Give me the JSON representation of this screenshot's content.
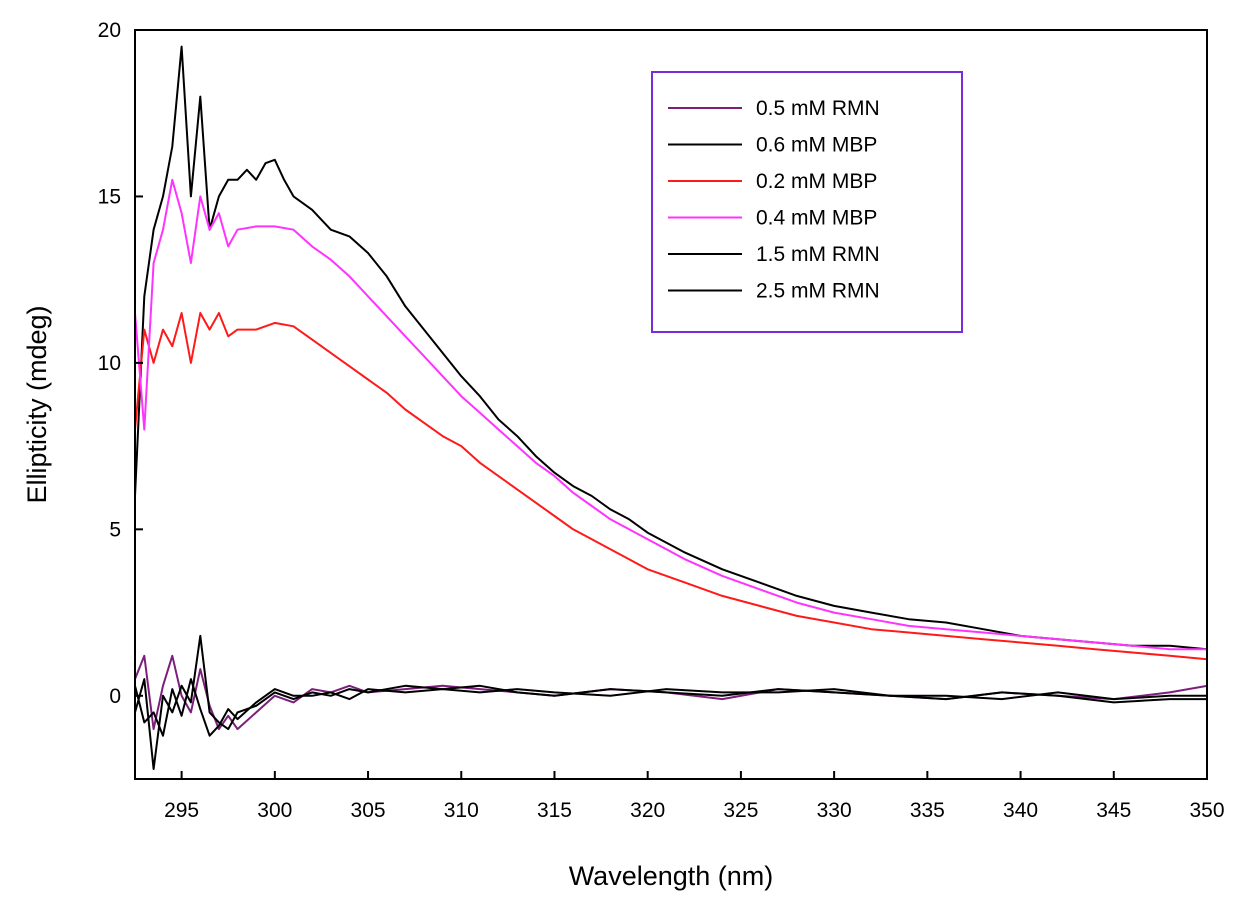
{
  "chart_data": {
    "type": "line",
    "title": "",
    "xlabel": "Wavelength (nm)",
    "ylabel": "Ellipticity (mdeg)",
    "xlim": [
      292.5,
      350
    ],
    "ylim": [
      -2.5,
      20
    ],
    "xticks": [
      295,
      300,
      305,
      310,
      315,
      320,
      325,
      330,
      335,
      340,
      345,
      350
    ],
    "yticks": [
      0,
      5,
      10,
      15,
      20
    ],
    "grid": false,
    "legend": "top-right",
    "series": [
      {
        "name": "0.5 mM RMN",
        "color": "#7b1f7b",
        "x": [
          292.5,
          293,
          293.5,
          294,
          294.5,
          295,
          295.5,
          296,
          296.5,
          297,
          297.5,
          298,
          299,
          300,
          301,
          302,
          303,
          304,
          305,
          307,
          309,
          311,
          313,
          315,
          318,
          321,
          324,
          327,
          330,
          333,
          336,
          339,
          342,
          345,
          348,
          350
        ],
        "y": [
          0.5,
          1.2,
          -1.0,
          0.3,
          1.2,
          0.0,
          -0.5,
          0.8,
          -0.3,
          -1.0,
          -0.6,
          -1.0,
          -0.5,
          0.0,
          -0.2,
          0.2,
          0.1,
          0.3,
          0.1,
          0.2,
          0.3,
          0.2,
          0.1,
          0.0,
          0.2,
          0.1,
          -0.1,
          0.2,
          0.1,
          0.0,
          -0.1,
          0.1,
          0.0,
          -0.1,
          0.1,
          0.3
        ]
      },
      {
        "name": "0.6 mM MBP",
        "color": "#000000",
        "x": [
          292.5,
          293,
          293.5,
          294,
          294.5,
          295,
          295.5,
          296,
          296.5,
          297,
          297.5,
          298,
          298.5,
          299,
          299.5,
          300,
          300.5,
          301,
          302,
          303,
          304,
          305,
          306,
          307,
          308,
          309,
          310,
          311,
          312,
          313,
          314,
          315,
          316,
          317,
          318,
          319,
          320,
          322,
          324,
          326,
          328,
          330,
          332,
          334,
          336,
          338,
          340,
          342,
          344,
          346,
          348,
          350
        ],
        "y": [
          6.0,
          12.0,
          14.0,
          15.0,
          16.5,
          19.5,
          15.0,
          18.0,
          14.0,
          15.0,
          15.5,
          15.5,
          15.8,
          15.5,
          16.0,
          16.1,
          15.5,
          15.0,
          14.6,
          14.0,
          13.8,
          13.3,
          12.6,
          11.7,
          11.0,
          10.3,
          9.6,
          9.0,
          8.3,
          7.8,
          7.2,
          6.7,
          6.3,
          6.0,
          5.6,
          5.3,
          4.9,
          4.3,
          3.8,
          3.4,
          3.0,
          2.7,
          2.5,
          2.3,
          2.2,
          2.0,
          1.8,
          1.7,
          1.6,
          1.5,
          1.5,
          1.4
        ]
      },
      {
        "name": "0.2 mM MBP",
        "color": "#ff1a1a",
        "x": [
          292.5,
          293,
          293.5,
          294,
          294.5,
          295,
          295.5,
          296,
          296.5,
          297,
          297.5,
          298,
          299,
          300,
          301,
          302,
          303,
          304,
          305,
          306,
          307,
          308,
          309,
          310,
          311,
          312,
          313,
          314,
          315,
          316,
          317,
          318,
          319,
          320,
          322,
          324,
          326,
          328,
          330,
          332,
          334,
          336,
          338,
          340,
          342,
          344,
          346,
          348,
          350
        ],
        "y": [
          8.0,
          11.0,
          10.0,
          11.0,
          10.5,
          11.5,
          10.0,
          11.5,
          11.0,
          11.5,
          10.8,
          11.0,
          11.0,
          11.2,
          11.1,
          10.7,
          10.3,
          9.9,
          9.5,
          9.1,
          8.6,
          8.2,
          7.8,
          7.5,
          7.0,
          6.6,
          6.2,
          5.8,
          5.4,
          5.0,
          4.7,
          4.4,
          4.1,
          3.8,
          3.4,
          3.0,
          2.7,
          2.4,
          2.2,
          2.0,
          1.9,
          1.8,
          1.7,
          1.6,
          1.5,
          1.4,
          1.3,
          1.2,
          1.1
        ]
      },
      {
        "name": "0.4 mM MBP",
        "color": "#ff33ff",
        "x": [
          292.5,
          293,
          293.5,
          294,
          294.5,
          295,
          295.5,
          296,
          296.5,
          297,
          297.5,
          298,
          299,
          300,
          301,
          302,
          303,
          304,
          305,
          306,
          307,
          308,
          309,
          310,
          311,
          312,
          313,
          314,
          315,
          316,
          317,
          318,
          319,
          320,
          322,
          324,
          326,
          328,
          330,
          332,
          334,
          336,
          338,
          340,
          342,
          344,
          346,
          348,
          350
        ],
        "y": [
          11.5,
          8.0,
          13.0,
          14.0,
          15.5,
          14.5,
          13.0,
          15.0,
          14.0,
          14.5,
          13.5,
          14.0,
          14.1,
          14.1,
          14.0,
          13.5,
          13.1,
          12.6,
          12.0,
          11.4,
          10.8,
          10.2,
          9.6,
          9.0,
          8.5,
          8.0,
          7.5,
          7.0,
          6.6,
          6.1,
          5.7,
          5.3,
          5.0,
          4.7,
          4.1,
          3.6,
          3.2,
          2.8,
          2.5,
          2.3,
          2.1,
          2.0,
          1.9,
          1.8,
          1.7,
          1.6,
          1.5,
          1.4,
          1.4
        ]
      },
      {
        "name": "1.5 mM RMN",
        "color": "#000000",
        "x": [
          292.5,
          293,
          293.5,
          294,
          294.5,
          295,
          295.5,
          296,
          296.5,
          297,
          297.5,
          298,
          299,
          300,
          301,
          302,
          303,
          304,
          305,
          307,
          309,
          311,
          313,
          315,
          318,
          321,
          324,
          327,
          330,
          333,
          336,
          339,
          342,
          345,
          348,
          350
        ],
        "y": [
          -0.5,
          0.5,
          -2.2,
          0.0,
          -0.5,
          0.3,
          -0.2,
          1.8,
          -0.5,
          -0.8,
          -1.0,
          -0.5,
          -0.3,
          0.1,
          -0.1,
          0.1,
          0.0,
          0.2,
          0.1,
          0.3,
          0.2,
          0.3,
          0.1,
          0.0,
          0.2,
          0.1,
          0.0,
          0.2,
          0.1,
          0.0,
          0.0,
          -0.1,
          0.1,
          -0.1,
          0.0,
          0.0
        ]
      },
      {
        "name": "2.5 mM RMN",
        "color": "#000000",
        "x": [
          292.5,
          293,
          293.5,
          294,
          294.5,
          295,
          295.5,
          296,
          296.5,
          297,
          297.5,
          298,
          299,
          300,
          301,
          302,
          303,
          304,
          305,
          307,
          309,
          311,
          313,
          315,
          318,
          321,
          324,
          327,
          330,
          333,
          336,
          339,
          342,
          345,
          348,
          350
        ],
        "y": [
          0.3,
          -0.8,
          -0.5,
          -1.2,
          0.2,
          -0.6,
          0.5,
          -0.4,
          -1.2,
          -0.9,
          -0.4,
          -0.7,
          -0.2,
          0.2,
          0.0,
          0.0,
          0.1,
          -0.1,
          0.2,
          0.1,
          0.2,
          0.1,
          0.2,
          0.1,
          0.0,
          0.2,
          0.1,
          0.1,
          0.2,
          0.0,
          -0.1,
          0.1,
          0.0,
          -0.2,
          -0.1,
          -0.1
        ]
      }
    ]
  },
  "legend_box_color": "#7b2cd9"
}
